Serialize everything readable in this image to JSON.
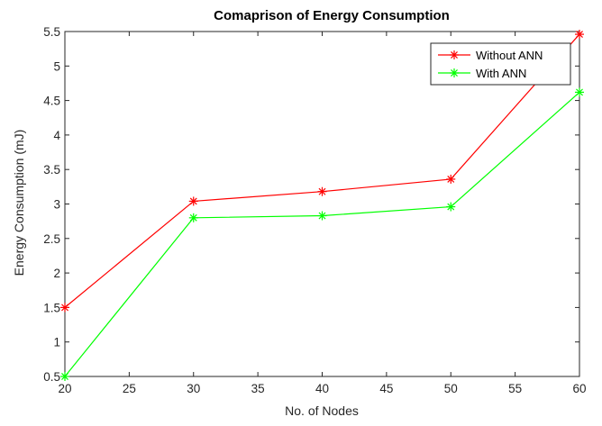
{
  "chart_data": {
    "type": "line",
    "title": "Comaprison of Energy Consumption",
    "xlabel": "No. of Nodes",
    "ylabel": "Energy Consumption (mJ)",
    "x": [
      20,
      30,
      40,
      50,
      60
    ],
    "xlim": [
      20,
      60
    ],
    "ylim": [
      0.5,
      5.5
    ],
    "xticks": [
      "20",
      "25",
      "30",
      "35",
      "40",
      "45",
      "50",
      "55",
      "60"
    ],
    "yticks": [
      "0.5",
      "1",
      "1.5",
      "2",
      "2.5",
      "3",
      "3.5",
      "4",
      "4.5",
      "5",
      "5.5"
    ],
    "grid": false,
    "legend_position": "top-right",
    "series": [
      {
        "name": "Without ANN",
        "color": "#ff0000",
        "marker": "asterisk",
        "values": [
          1.5,
          3.04,
          3.18,
          3.36,
          5.46
        ]
      },
      {
        "name": "With ANN",
        "color": "#00ff00",
        "marker": "asterisk",
        "values": [
          0.5,
          2.8,
          2.83,
          2.96,
          4.62
        ]
      }
    ]
  }
}
